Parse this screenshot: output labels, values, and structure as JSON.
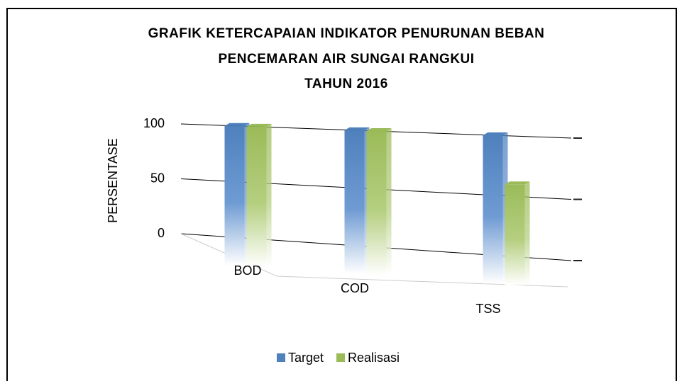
{
  "chart_data": {
    "type": "bar3d",
    "title": [
      "GRAFIK KETERCAPAIAN INDIKATOR PENURUNAN BEBAN",
      "PENCEMARAN AIR SUNGAI RANGKUI",
      "TAHUN 2016"
    ],
    "y_label": "PERSENTASE",
    "categories": [
      "BOD",
      "COD",
      "TSS"
    ],
    "series": [
      {
        "name": "Target",
        "color": "#4f81bd",
        "values": [
          100,
          100,
          100
        ]
      },
      {
        "name": "Realisasi",
        "color": "#9bbb59",
        "values": [
          100,
          100,
          60
        ]
      }
    ],
    "ylim": [
      0,
      100
    ],
    "yticks": [
      0,
      50,
      100
    ],
    "grid": true,
    "legend": "bottom"
  }
}
